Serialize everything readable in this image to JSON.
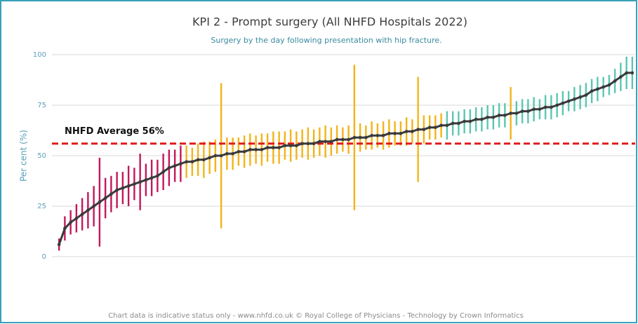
{
  "chart_data": {
    "type": "errorbar",
    "title": "KPI 2 - Prompt surgery (All NHFD Hospitals 2022)",
    "subtitle": "Surgery by the day following presentation with hip fracture.",
    "y_label": "Per cent (%)",
    "footer": "Chart data is indicative status only - www.nhfd.co.uk © Royal College of Physicians - Technology by Crown Informatics",
    "ylim": [
      0,
      100
    ],
    "yticks": [
      0,
      25,
      50,
      75,
      100
    ],
    "grid": true,
    "line_color": "#3a3a3a",
    "values": [
      6,
      14,
      17,
      19,
      21,
      23,
      25,
      27,
      29,
      31,
      33,
      34,
      35,
      36,
      37,
      38,
      39,
      40,
      42,
      44,
      45,
      46,
      47,
      47,
      48,
      48,
      49,
      50,
      50,
      51,
      51,
      52,
      52,
      53,
      53,
      53,
      54,
      54,
      54,
      55,
      55,
      55,
      56,
      56,
      56,
      57,
      57,
      57,
      58,
      58,
      58,
      59,
      59,
      59,
      60,
      60,
      60,
      61,
      61,
      61,
      62,
      62,
      63,
      63,
      64,
      64,
      65,
      65,
      66,
      66,
      67,
      67,
      68,
      68,
      69,
      69,
      70,
      70,
      71,
      71,
      72,
      72,
      73,
      73,
      74,
      74,
      75,
      76,
      77,
      78,
      79,
      80,
      82,
      83,
      84,
      85,
      87,
      89,
      91,
      91
    ],
    "errors": [
      3,
      6,
      6,
      7,
      8,
      9,
      10,
      22,
      10,
      9,
      9,
      8,
      10,
      8,
      14,
      8,
      9,
      8,
      9,
      9,
      8,
      9,
      8,
      7,
      8,
      9,
      8,
      8,
      36,
      8,
      8,
      7,
      8,
      8,
      7,
      8,
      7,
      8,
      8,
      7,
      8,
      7,
      7,
      8,
      7,
      7,
      8,
      7,
      7,
      6,
      7,
      36,
      7,
      6,
      7,
      6,
      7,
      7,
      6,
      6,
      7,
      6,
      26,
      7,
      6,
      6,
      6,
      7,
      6,
      6,
      6,
      6,
      6,
      6,
      6,
      6,
      6,
      6,
      13,
      6,
      6,
      6,
      6,
      5,
      6,
      6,
      6,
      6,
      5,
      6,
      6,
      6,
      6,
      6,
      5,
      5,
      6,
      7,
      8,
      8
    ],
    "error_colors": [
      "#c2185b",
      "#c2185b",
      "#c2185b",
      "#c2185b",
      "#c2185b",
      "#c2185b",
      "#c2185b",
      "#c2185b",
      "#c2185b",
      "#c2185b",
      "#c2185b",
      "#c2185b",
      "#c2185b",
      "#c2185b",
      "#c2185b",
      "#c2185b",
      "#c2185b",
      "#c2185b",
      "#c2185b",
      "#c2185b",
      "#c2185b",
      "#c2185b",
      "#f2b418",
      "#f2b418",
      "#f2b418",
      "#f2b418",
      "#f2b418",
      "#f2b418",
      "#f2b418",
      "#f2b418",
      "#f2b418",
      "#f2b418",
      "#f2b418",
      "#f2b418",
      "#f2b418",
      "#f2b418",
      "#f2b418",
      "#f2b418",
      "#f2b418",
      "#f2b418",
      "#f2b418",
      "#f2b418",
      "#f2b418",
      "#f2b418",
      "#f2b418",
      "#f2b418",
      "#f2b418",
      "#f2b418",
      "#f2b418",
      "#f2b418",
      "#f2b418",
      "#f2b418",
      "#f2b418",
      "#f2b418",
      "#f2b418",
      "#f2b418",
      "#f2b418",
      "#f2b418",
      "#f2b418",
      "#f2b418",
      "#f2b418",
      "#f2b418",
      "#f2b418",
      "#f2b418",
      "#f2b418",
      "#f2b418",
      "#f2b418",
      "#5cc6b0",
      "#5cc6b0",
      "#5cc6b0",
      "#5cc6b0",
      "#5cc6b0",
      "#5cc6b0",
      "#5cc6b0",
      "#5cc6b0",
      "#5cc6b0",
      "#5cc6b0",
      "#5cc6b0",
      "#f2b418",
      "#5cc6b0",
      "#5cc6b0",
      "#5cc6b0",
      "#5cc6b0",
      "#5cc6b0",
      "#5cc6b0",
      "#5cc6b0",
      "#5cc6b0",
      "#5cc6b0",
      "#5cc6b0",
      "#5cc6b0",
      "#5cc6b0",
      "#5cc6b0",
      "#5cc6b0",
      "#5cc6b0",
      "#5cc6b0",
      "#5cc6b0",
      "#5cc6b0",
      "#5cc6b0",
      "#5cc6b0",
      "#5cc6b0"
    ],
    "reference_line": {
      "value": 56,
      "label": "NHFD Average 56%",
      "color": "#e01b1b"
    }
  }
}
